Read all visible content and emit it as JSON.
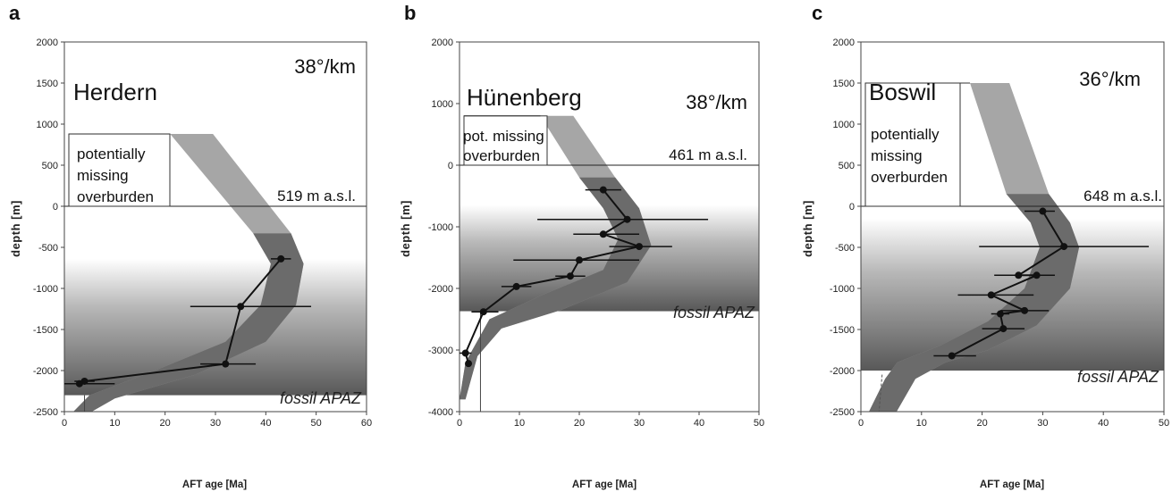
{
  "chart_data": [
    {
      "type": "line",
      "panel": "a",
      "site": "Herdern",
      "geothermal_gradient": "38°/km",
      "surface_label": "519 m a.s.l.",
      "overburden_label": [
        "potentially",
        "missing",
        "overburden"
      ],
      "apaz_label": "fossil APAZ",
      "xlabel": "AFT age [Ma]",
      "ylabel": "depth [m]",
      "xlim": [
        0,
        60
      ],
      "ylim": [
        -2500,
        2000
      ],
      "xticks": [
        0,
        10,
        20,
        30,
        40,
        50,
        60
      ],
      "yticks": [
        2000,
        1500,
        1000,
        500,
        0,
        -500,
        -1000,
        -1500,
        -2000,
        -2500
      ],
      "overburden_top": 880,
      "apaz_top": -640,
      "apaz_bottom": -2300,
      "band_dark_start": -330,
      "band_left": [
        [
          21,
          880
        ],
        [
          37.5,
          -330
        ],
        [
          41,
          -700
        ],
        [
          39,
          -1200
        ],
        [
          32,
          -1650
        ],
        [
          18,
          -2000
        ],
        [
          5,
          -2300
        ],
        [
          1,
          -2550
        ]
      ],
      "band_right": [
        [
          29.5,
          880
        ],
        [
          45,
          -330
        ],
        [
          47.5,
          -700
        ],
        [
          46,
          -1200
        ],
        [
          40,
          -1650
        ],
        [
          26,
          -2050
        ],
        [
          10,
          -2340
        ],
        [
          4,
          -2550
        ]
      ],
      "points": [
        {
          "x": 43,
          "y": -640,
          "xerr": [
            41,
            45
          ]
        },
        {
          "x": 35,
          "y": -1220,
          "xerr": [
            25,
            49
          ]
        },
        {
          "x": 32,
          "y": -1920,
          "xerr": [
            27,
            38
          ]
        },
        {
          "x": 4,
          "y": -2130,
          "xerr": [
            2,
            6
          ]
        },
        {
          "x": 3,
          "y": -2160,
          "xerr": [
            0,
            10
          ]
        }
      ]
    },
    {
      "type": "line",
      "panel": "b",
      "site": "Hünenberg",
      "geothermal_gradient": "38°/km",
      "surface_label": "461 m a.s.l.",
      "overburden_label": [
        "pot. missing",
        "overburden"
      ],
      "apaz_label": "fossil APAZ",
      "xlabel": "AFT age [Ma]",
      "ylabel": "depth [m]",
      "xlim": [
        0,
        50
      ],
      "ylim": [
        -4000,
        2000
      ],
      "xticks": [
        0,
        10,
        20,
        30,
        40,
        50
      ],
      "yticks": [
        2000,
        1000,
        0,
        -1000,
        -2000,
        -3000,
        -4000
      ],
      "overburden_top": 800,
      "apaz_top": -650,
      "apaz_bottom": -2370,
      "band_dark_start": -200,
      "band_left": [
        [
          13.5,
          800
        ],
        [
          20,
          -200
        ],
        [
          24,
          -700
        ],
        [
          26.5,
          -1200
        ],
        [
          24,
          -1700
        ],
        [
          14,
          -2100
        ],
        [
          5,
          -2500
        ],
        [
          1,
          -3200
        ],
        [
          0,
          -3800
        ]
      ],
      "band_right": [
        [
          19,
          800
        ],
        [
          26,
          -200
        ],
        [
          30,
          -700
        ],
        [
          32,
          -1300
        ],
        [
          28,
          -1900
        ],
        [
          17,
          -2350
        ],
        [
          7,
          -2650
        ],
        [
          3,
          -3100
        ],
        [
          1,
          -3800
        ]
      ],
      "points": [
        {
          "x": 24,
          "y": -400,
          "xerr": [
            21,
            27
          ]
        },
        {
          "x": 28,
          "y": -880,
          "xerr": [
            13,
            41.5
          ]
        },
        {
          "x": 24,
          "y": -1120,
          "xerr": [
            19,
            30
          ]
        },
        {
          "x": 30,
          "y": -1320,
          "xerr": [
            25,
            35.5
          ]
        },
        {
          "x": 20,
          "y": -1540,
          "xerr": [
            9,
            30
          ]
        },
        {
          "x": 18.5,
          "y": -1800,
          "xerr": [
            16,
            21
          ]
        },
        {
          "x": 9.5,
          "y": -1970,
          "xerr": [
            7,
            12
          ]
        },
        {
          "x": 4,
          "y": -2380,
          "xerr": [
            2,
            6.5
          ]
        },
        {
          "x": 1,
          "y": -3050,
          "xerr": [
            0,
            2
          ]
        },
        {
          "x": 1.5,
          "y": -3220,
          "xerr": [
            1.5,
            1.5
          ]
        }
      ]
    },
    {
      "type": "line",
      "panel": "c",
      "site": "Boswil",
      "geothermal_gradient": "36°/km",
      "surface_label": "648 m a.s.l.",
      "overburden_label": [
        "potentially",
        "missing",
        "overburden"
      ],
      "apaz_label": "fossil APAZ",
      "xlabel": "AFT age [Ma]",
      "ylabel": "depth [m]",
      "xlim": [
        0,
        50
      ],
      "ylim": [
        -2500,
        2000
      ],
      "xticks": [
        0,
        10,
        20,
        30,
        40,
        50
      ],
      "yticks": [
        2000,
        1500,
        1000,
        500,
        0,
        -500,
        -1000,
        -1500,
        -2000,
        -2500
      ],
      "overburden_top": 1500,
      "apaz_top": -150,
      "apaz_bottom": -2000,
      "band_dark_start": 150,
      "band_left": [
        [
          18,
          1500
        ],
        [
          24,
          150
        ],
        [
          28,
          -200
        ],
        [
          29.5,
          -500
        ],
        [
          27,
          -1000
        ],
        [
          21,
          -1400
        ],
        [
          13,
          -1700
        ],
        [
          6,
          -1900
        ],
        [
          4,
          -2100
        ],
        [
          1,
          -2550
        ]
      ],
      "band_right": [
        [
          24.5,
          1500
        ],
        [
          31,
          150
        ],
        [
          34.5,
          -200
        ],
        [
          36,
          -500
        ],
        [
          34.5,
          -1000
        ],
        [
          29,
          -1450
        ],
        [
          21,
          -1750
        ],
        [
          14,
          -1900
        ],
        [
          9,
          -2100
        ],
        [
          5.5,
          -2550
        ]
      ],
      "points": [
        {
          "x": 30,
          "y": -60,
          "xerr": [
            27,
            32
          ]
        },
        {
          "x": 33.5,
          "y": -490,
          "xerr": [
            19.5,
            47.5
          ]
        },
        {
          "x": 26,
          "y": -840,
          "xerr": [
            22,
            31
          ]
        },
        {
          "x": 29,
          "y": -840,
          "xerr": [
            26,
            32
          ]
        },
        {
          "x": 21.5,
          "y": -1080,
          "xerr": [
            16,
            28.5
          ]
        },
        {
          "x": 27,
          "y": -1270,
          "xerr": [
            23,
            31
          ]
        },
        {
          "x": 23,
          "y": -1310,
          "xerr": [
            21.5,
            24.5
          ]
        },
        {
          "x": 23.5,
          "y": -1490,
          "xerr": [
            20,
            27
          ]
        },
        {
          "x": 15,
          "y": -1820,
          "xerr": [
            12,
            19
          ]
        }
      ]
    }
  ]
}
